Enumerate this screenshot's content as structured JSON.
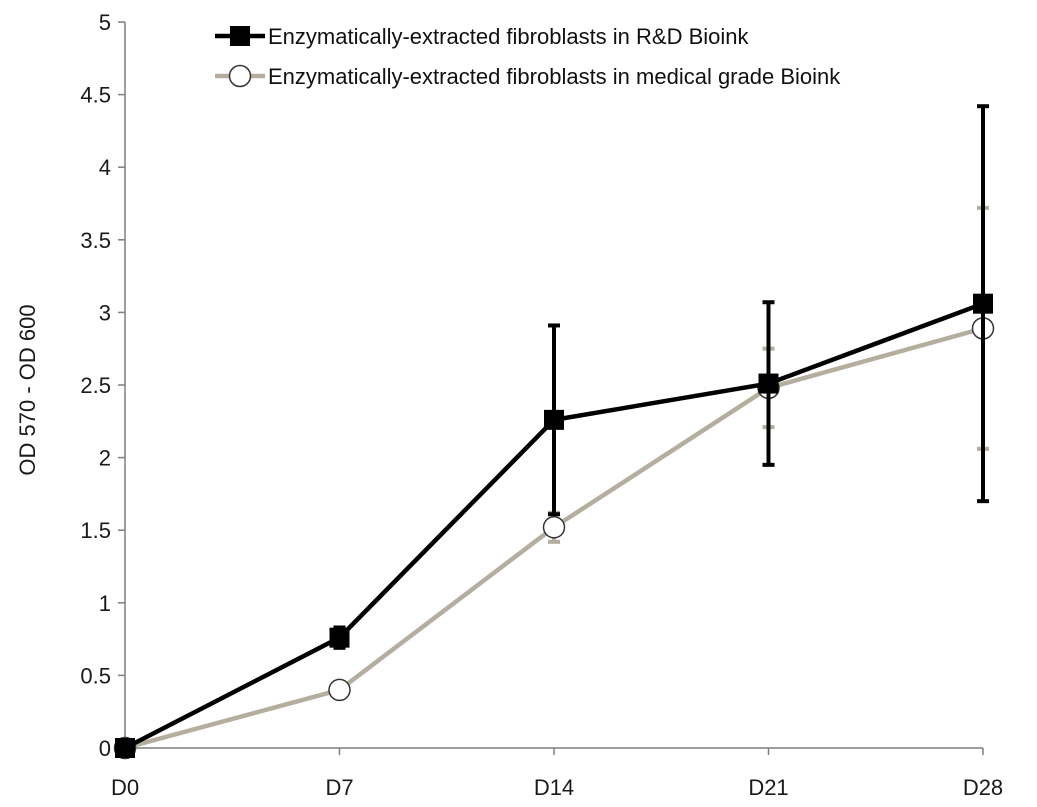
{
  "chart_data": {
    "type": "line",
    "title": "",
    "xlabel": "",
    "ylabel": "OD 570 - OD 600",
    "categories": [
      "D0",
      "D7",
      "D14",
      "D21",
      "D28"
    ],
    "ylim": [
      0,
      5
    ],
    "yticks": [
      "0",
      "0.5",
      "1",
      "1.5",
      "2",
      "2.5",
      "3",
      "3.5",
      "4",
      "4.5",
      "5"
    ],
    "grid": false,
    "legend_position": "top",
    "series": [
      {
        "name": "Enzymatically-extracted fibroblasts  in R&D Bioink",
        "values": [
          0,
          0.76,
          2.26,
          2.51,
          3.06
        ],
        "err_low": [
          0,
          0.07,
          0.65,
          0.56,
          1.36
        ],
        "err_high": [
          0,
          0.07,
          0.65,
          0.56,
          1.36
        ],
        "color": "#000000",
        "marker": "filled-square"
      },
      {
        "name": "Enzymatically-extracted fibroblasts in medical grade Bioink",
        "values": [
          0,
          0.4,
          1.52,
          2.48,
          2.89
        ],
        "err_low": [
          0,
          0.0,
          0.1,
          0.27,
          0.83
        ],
        "err_high": [
          0,
          0.0,
          0.1,
          0.27,
          0.83
        ],
        "color": "#b5ae9e",
        "marker": "open-circle"
      }
    ]
  }
}
